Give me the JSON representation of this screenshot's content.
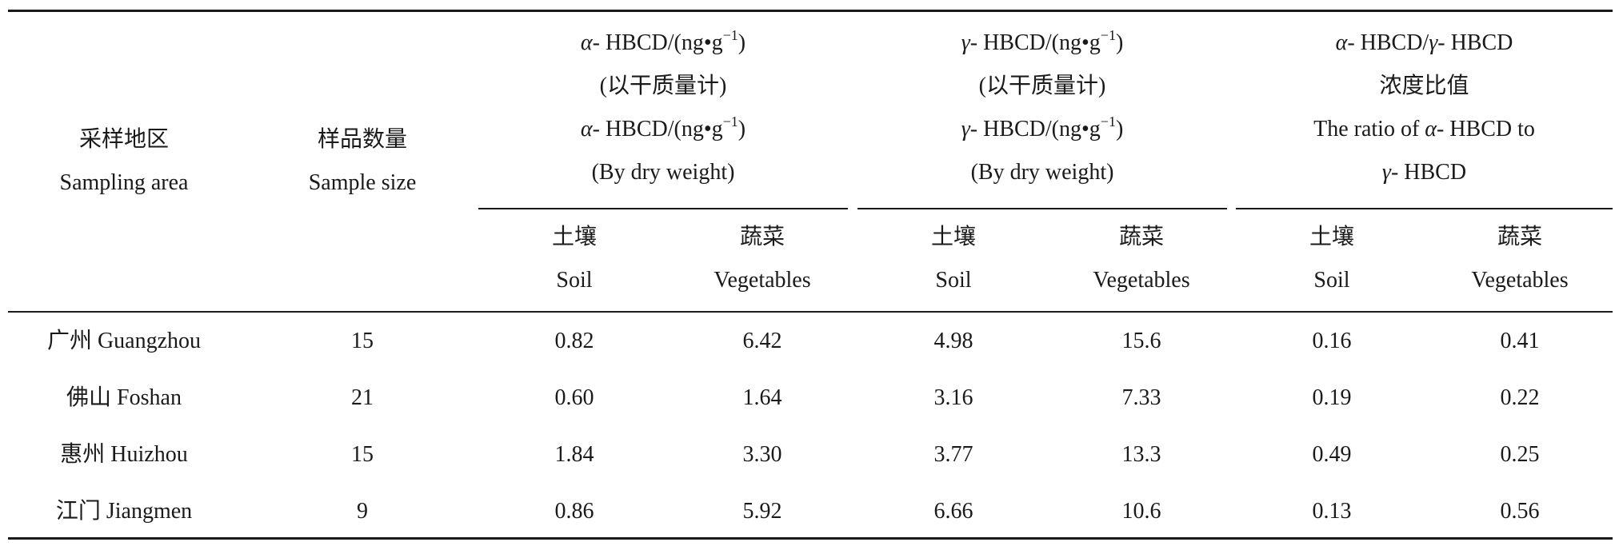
{
  "table": {
    "header": {
      "area_cn": "采样地区",
      "area_en": "Sampling area",
      "size_cn": "样品数量",
      "size_en": "Sample size",
      "alpha": {
        "line1_sym": "α",
        "line1_rest": "-  HBCD/(ng•g",
        "line1_exp": "−1",
        "line1_close": ")",
        "line2": "(以干质量计)",
        "line3_sym": "α",
        "line3_rest": "-  HBCD/(ng•g",
        "line3_exp": "−1",
        "line3_close": ")",
        "line4": "(By dry weight)"
      },
      "gamma": {
        "line1_sym": "γ",
        "line1_rest": "-  HBCD/(ng•g",
        "line1_exp": "−1",
        "line1_close": ")",
        "line2": "(以干质量计)",
        "line3_sym": "γ",
        "line3_rest": "-  HBCD/(ng•g",
        "line3_exp": "−1",
        "line3_close": ")",
        "line4": "(By dry weight)"
      },
      "ratio": {
        "line1_a": "α",
        "line1_b": "-  HBCD/",
        "line1_c": "γ",
        "line1_d": "-  HBCD",
        "line2": "浓度比值",
        "line3_a": "The ratio of ",
        "line3_b": "α",
        "line3_c": "-  HBCD to",
        "line4_a": "γ",
        "line4_b": "-  HBCD"
      },
      "sub": {
        "soil_cn": "土壤",
        "soil_en": "Soil",
        "veg_cn": "蔬菜",
        "veg_en": "Vegetables"
      }
    },
    "rows": [
      {
        "area": "广州  Guangzhou",
        "size": "15",
        "a_soil": "0.82",
        "a_veg": "6.42",
        "g_soil": "4.98",
        "g_veg": "15.6",
        "r_soil": "0.16",
        "r_veg": "0.41"
      },
      {
        "area": "佛山  Foshan",
        "size": "21",
        "a_soil": "0.60",
        "a_veg": "1.64",
        "g_soil": "3.16",
        "g_veg": "7.33",
        "r_soil": "0.19",
        "r_veg": "0.22"
      },
      {
        "area": "惠州  Huizhou",
        "size": "15",
        "a_soil": "1.84",
        "a_veg": "3.30",
        "g_soil": "3.77",
        "g_veg": "13.3",
        "r_soil": "0.49",
        "r_veg": "0.25"
      },
      {
        "area": "江门  Jiangmen",
        "size": "9",
        "a_soil": "0.86",
        "a_veg": "5.92",
        "g_soil": "6.66",
        "g_veg": "10.6",
        "r_soil": "0.13",
        "r_veg": "0.56"
      }
    ]
  }
}
